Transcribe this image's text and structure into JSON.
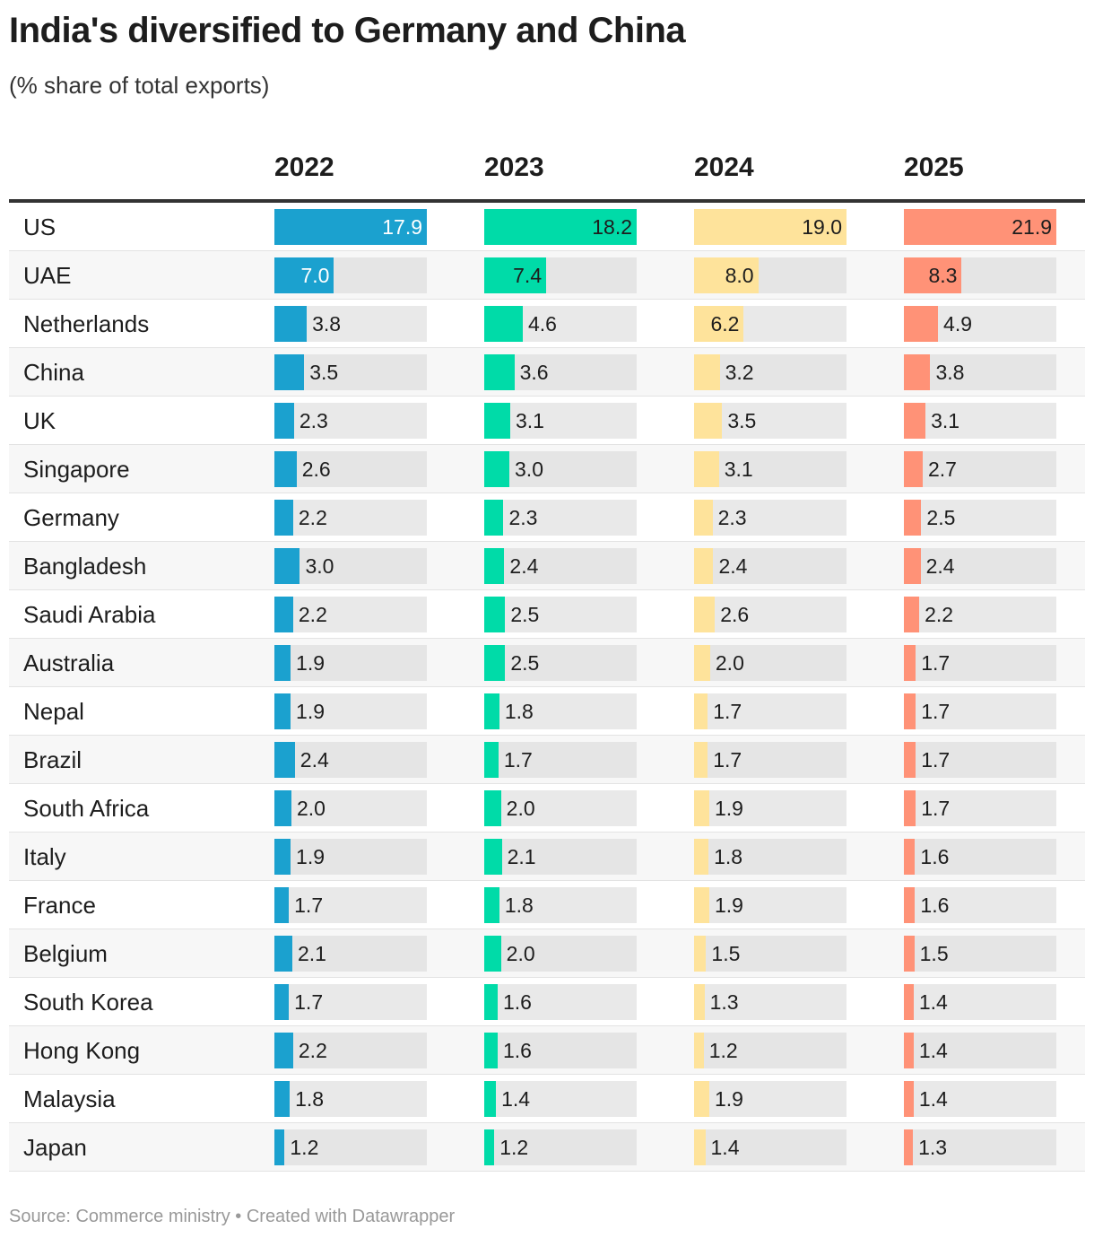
{
  "title": "India's diversified to Germany and China",
  "subtitle": "(% share of total exports)",
  "footer": "Source: Commerce ministry • Created with Datawrapper",
  "chart_data": {
    "type": "table",
    "columns": [
      "2022",
      "2023",
      "2024",
      "2025"
    ],
    "colors": [
      "#1ba1cf",
      "#00dba8",
      "#fee39b",
      "#ff9277"
    ],
    "rows": [
      {
        "country": "US",
        "values": [
          17.9,
          18.2,
          19.0,
          21.9
        ]
      },
      {
        "country": "UAE",
        "values": [
          7.0,
          7.4,
          8.0,
          8.3
        ]
      },
      {
        "country": "Netherlands",
        "values": [
          3.8,
          4.6,
          6.2,
          4.9
        ]
      },
      {
        "country": "China",
        "values": [
          3.5,
          3.6,
          3.2,
          3.8
        ]
      },
      {
        "country": "UK",
        "values": [
          2.3,
          3.1,
          3.5,
          3.1
        ]
      },
      {
        "country": "Singapore",
        "values": [
          2.6,
          3.0,
          3.1,
          2.7
        ]
      },
      {
        "country": "Germany",
        "values": [
          2.2,
          2.3,
          2.3,
          2.5
        ]
      },
      {
        "country": "Bangladesh",
        "values": [
          3.0,
          2.4,
          2.4,
          2.4
        ]
      },
      {
        "country": "Saudi Arabia",
        "values": [
          2.2,
          2.5,
          2.6,
          2.2
        ]
      },
      {
        "country": "Australia",
        "values": [
          1.9,
          2.5,
          2.0,
          1.7
        ]
      },
      {
        "country": "Nepal",
        "values": [
          1.9,
          1.8,
          1.7,
          1.7
        ]
      },
      {
        "country": "Brazil",
        "values": [
          2.4,
          1.7,
          1.7,
          1.7
        ]
      },
      {
        "country": "South Africa",
        "values": [
          2.0,
          2.0,
          1.9,
          1.7
        ]
      },
      {
        "country": "Italy",
        "values": [
          1.9,
          2.1,
          1.8,
          1.6
        ]
      },
      {
        "country": "France",
        "values": [
          1.7,
          1.8,
          1.9,
          1.6
        ]
      },
      {
        "country": "Belgium",
        "values": [
          2.1,
          2.0,
          1.5,
          1.5
        ]
      },
      {
        "country": "South Korea",
        "values": [
          1.7,
          1.6,
          1.3,
          1.4
        ]
      },
      {
        "country": "Hong Kong",
        "values": [
          2.2,
          1.6,
          1.2,
          1.4
        ]
      },
      {
        "country": "Malaysia",
        "values": [
          1.8,
          1.4,
          1.9,
          1.4
        ]
      },
      {
        "country": "Japan",
        "values": [
          1.2,
          1.2,
          1.4,
          1.3
        ]
      }
    ]
  }
}
